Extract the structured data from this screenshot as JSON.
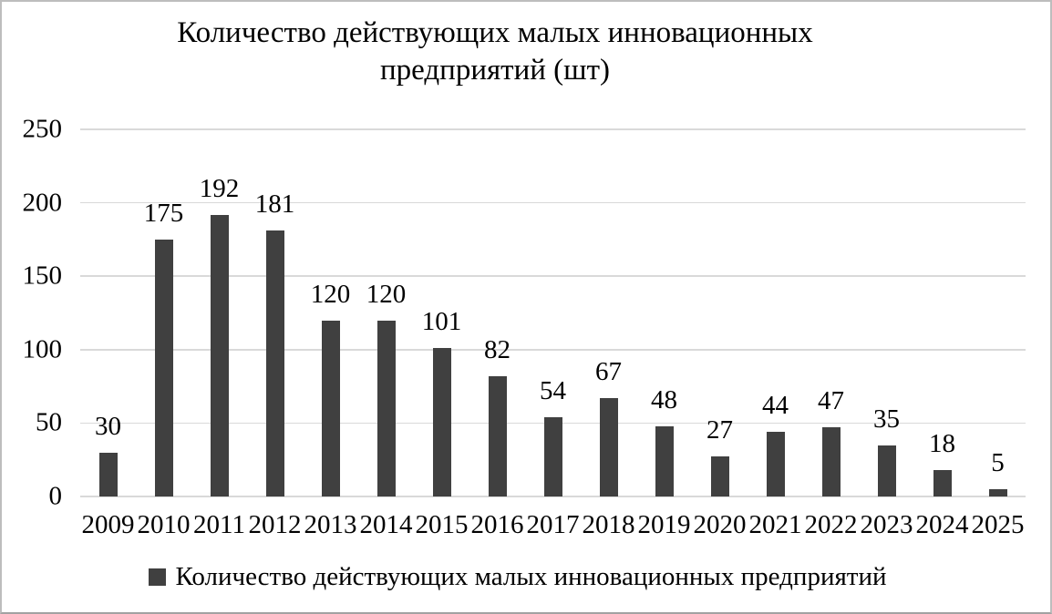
{
  "colors": {
    "background": "#FFFFFF",
    "border": "#BDBDBD",
    "bar": "#404040",
    "gridline": "#D9D9D9",
    "text": "#000000"
  },
  "chart_data": {
    "type": "bar",
    "title": "Количество действующих малых инновационных предприятий (шт)",
    "title_line1": "Количество действующих малых инновационных",
    "title_line2": "предприятий (шт)",
    "categories": [
      "2009",
      "2010",
      "2011",
      "2012",
      "2013",
      "2014",
      "2015",
      "2016",
      "2017",
      "2018",
      "2019",
      "2020",
      "2021",
      "2022",
      "2023",
      "2024",
      "2025"
    ],
    "series": [
      {
        "name": "Количество действующих малых инновационных предприятий",
        "values": [
          30,
          175,
          192,
          181,
          120,
          120,
          101,
          82,
          54,
          67,
          48,
          27,
          44,
          47,
          35,
          18,
          5
        ]
      }
    ],
    "xlabel": "",
    "ylabel": "",
    "ylim": [
      0,
      250
    ],
    "yticks": [
      0,
      50,
      100,
      150,
      200,
      250
    ],
    "grid": true,
    "data_labels": true,
    "legend_position": "bottom"
  }
}
